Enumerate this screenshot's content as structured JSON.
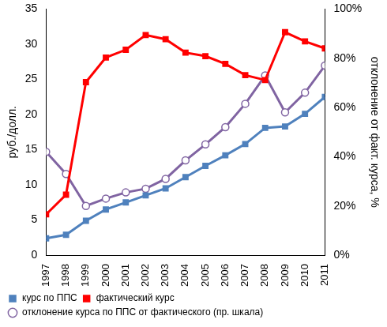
{
  "chart_data": {
    "type": "line",
    "categories": [
      "1997",
      "1998",
      "1999",
      "2000",
      "2001",
      "2002",
      "2003",
      "2004",
      "2005",
      "2006",
      "2007",
      "2008",
      "2009",
      "2010",
      "2011"
    ],
    "series": [
      {
        "name": "курс по ППС",
        "color": "#4f81bd",
        "marker": "square",
        "values": [
          2.4,
          2.9,
          4.9,
          6.5,
          7.5,
          8.5,
          9.5,
          11.1,
          12.7,
          14.2,
          15.8,
          18.1,
          18.3,
          20.1,
          22.5
        ]
      },
      {
        "name": "фактический курс",
        "color": "#ff0000",
        "marker": "square",
        "values": [
          5.8,
          8.6,
          24.6,
          28.1,
          29.2,
          31.3,
          30.7,
          28.8,
          28.3,
          27.2,
          25.6,
          24.9,
          31.7,
          30.4,
          29.4
        ]
      },
      {
        "name": "отклонение курса по ППС от фактического (пр. шкала)",
        "color": "#8064a2",
        "marker": "circle",
        "axis": "y2",
        "values": [
          42,
          33,
          20,
          23,
          25.5,
          27,
          31,
          38.5,
          45,
          52,
          61.5,
          73,
          58,
          66,
          77
        ]
      }
    ],
    "ylabel": "руб./долл.",
    "y2label": "отклонение от факт. курса, %",
    "ylim": [
      0,
      35
    ],
    "yticks": [
      0,
      5,
      10,
      15,
      20,
      25,
      30,
      35
    ],
    "y2lim": [
      0,
      100
    ],
    "y2ticks": [
      {
        "value": 0,
        "label": "0%"
      },
      {
        "value": 20,
        "label": "20%"
      },
      {
        "value": 40,
        "label": "40%"
      },
      {
        "value": 60,
        "label": "60%"
      },
      {
        "value": 80,
        "label": "80%"
      },
      {
        "value": 100,
        "label": "100%"
      }
    ],
    "grid": false,
    "legend": "bottom"
  }
}
